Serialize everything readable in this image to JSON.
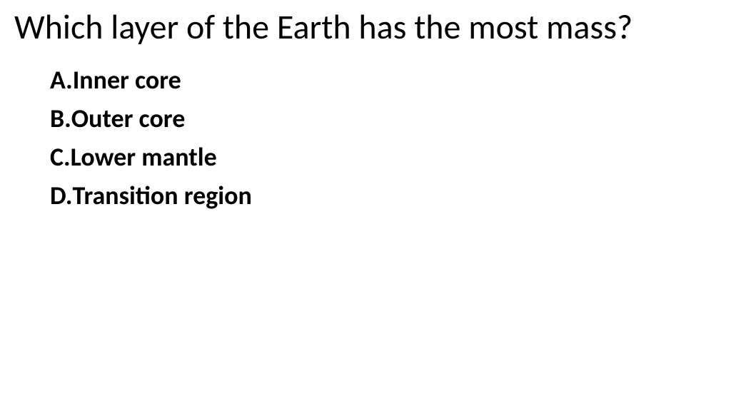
{
  "question": "Which layer of the Earth has the most mass?",
  "options": [
    {
      "letter": "A.",
      "text": "Inner core"
    },
    {
      "letter": "B.",
      "text": "Outer core"
    },
    {
      "letter": "C.",
      "text": "Lower mantle"
    },
    {
      "letter": "D.",
      "text": "Transition region"
    }
  ],
  "styling": {
    "background_color": "#ffffff",
    "text_color": "#000000",
    "question_fontsize": 48,
    "question_fontweight": 400,
    "option_fontsize": 36,
    "option_fontweight": 700,
    "font_family": "Calibri, Arial, sans-serif"
  }
}
